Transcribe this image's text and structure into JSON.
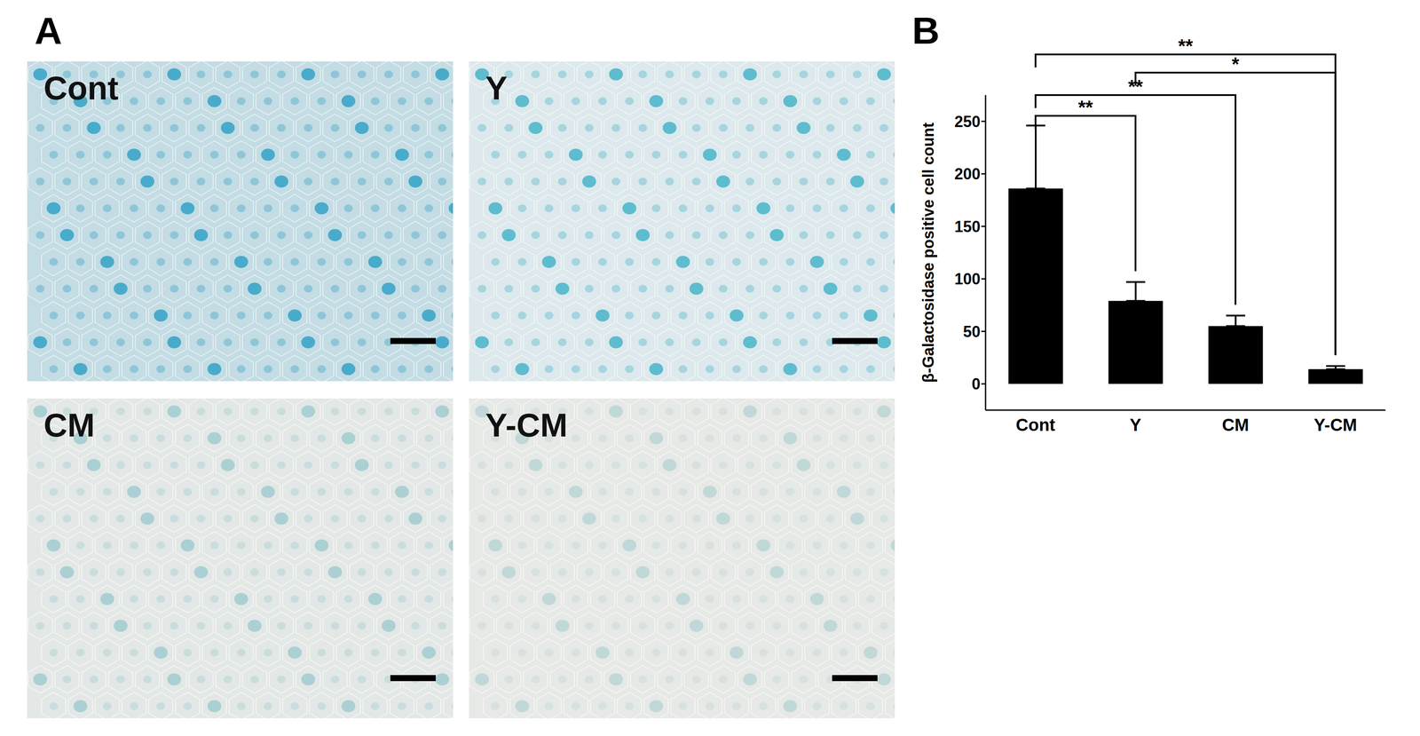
{
  "panel_labels": [
    "A",
    "B"
  ],
  "images": [
    {
      "label": "Cont"
    },
    {
      "label": "Y"
    },
    {
      "label": "CM"
    },
    {
      "label": "Y-CM"
    }
  ],
  "chart_data": {
    "type": "bar",
    "categories": [
      "Cont",
      "Y",
      "CM",
      "Y-CM"
    ],
    "values": [
      186,
      79,
      55,
      14
    ],
    "errors": [
      60,
      18,
      10,
      3
    ],
    "color": "#000000",
    "ylabel": "β-Galactosidase positive cell count",
    "ylim": [
      -25,
      275
    ],
    "yticks": [
      0,
      50,
      100,
      150,
      200,
      250
    ],
    "grid": false,
    "significance": [
      {
        "from": "Cont",
        "to": "Y",
        "label": "**"
      },
      {
        "from": "Cont",
        "to": "CM",
        "label": "**"
      },
      {
        "from": "Cont",
        "to": "Y-CM",
        "label": "**"
      },
      {
        "from": "Y",
        "to": "Y-CM",
        "label": "*"
      }
    ]
  }
}
